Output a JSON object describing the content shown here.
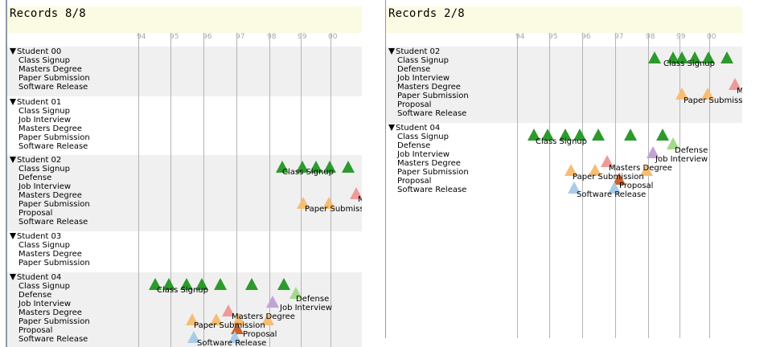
{
  "colors": {
    "class_signup": "#2c9a2c",
    "defense": "#a3d98c",
    "job_interview": "#c1a3d6",
    "masters_degree": "#ef9a9a",
    "paper_submission": "#f6bd74",
    "proposal": "#c8632a",
    "software_release": "#a9cbe8"
  },
  "left": {
    "title": "Records  8/8",
    "ticks": [
      "94",
      "95",
      "96",
      "97",
      "98",
      "99",
      "00"
    ],
    "groups": [
      {
        "name": "Student 00",
        "rows": [
          "Class Signup",
          "Masters Degree",
          "Paper Submission",
          "Software Release"
        ]
      },
      {
        "name": "Student 01",
        "rows": [
          "Class Signup",
          "Job Interview",
          "Masters Degree",
          "Paper Submission",
          "Software Release"
        ]
      },
      {
        "name": "Student 02",
        "rows": [
          "Class Signup",
          "Defense",
          "Job Interview",
          "Masters Degree",
          "Paper Submission",
          "Proposal",
          "Software Release"
        ]
      },
      {
        "name": "Student 03",
        "rows": [
          "Class Signup",
          "Masters Degree",
          "Paper Submission"
        ]
      },
      {
        "name": "Student 04",
        "rows": [
          "Class Signup",
          "Defense",
          "Job Interview",
          "Masters Degree",
          "Paper Submission",
          "Proposal",
          "Software Release"
        ]
      }
    ],
    "event_labels": [
      "Class Signup",
      "Paper Submiss",
      "M",
      "Class Signup",
      "Defense",
      "Job Interview",
      "Masters Degree",
      "Paper Submission",
      "Proposal",
      "Software Release"
    ]
  },
  "right": {
    "title": "Records  2/8",
    "ticks": [
      "94",
      "95",
      "96",
      "97",
      "98",
      "99",
      "00"
    ],
    "groups": [
      {
        "name": "Student 02",
        "rows": [
          "Class Signup",
          "Defense",
          "Job Interview",
          "Masters Degree",
          "Paper Submission",
          "Proposal",
          "Software Release"
        ]
      },
      {
        "name": "Student 04",
        "rows": [
          "Class Signup",
          "Defense",
          "Job Interview",
          "Masters Degree",
          "Paper Submission",
          "Proposal",
          "Software Release"
        ]
      }
    ],
    "event_labels": [
      "Class Signup",
      "Paper Submiss",
      "M",
      "Class Signup",
      "Defense",
      "Job Interview",
      "Masters Degree",
      "Paper Submission",
      "Proposal",
      "Software Release"
    ]
  }
}
